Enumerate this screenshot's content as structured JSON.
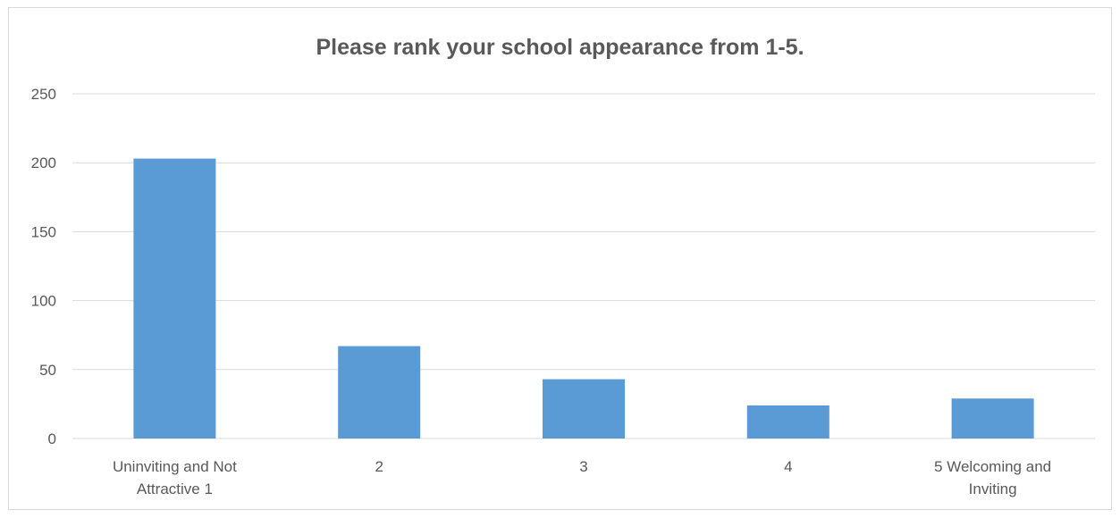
{
  "chart_data": {
    "type": "bar",
    "title": "Please rank your school appearance from 1-5.",
    "xlabel": "",
    "ylabel": "",
    "categories": [
      [
        "Uninviting and Not",
        "Attractive 1"
      ],
      [
        "2"
      ],
      [
        "3"
      ],
      [
        "4"
      ],
      [
        "5 Welcoming and",
        "Inviting"
      ]
    ],
    "values": [
      203,
      67,
      43,
      24,
      29
    ],
    "ylim": [
      0,
      250
    ],
    "yticks": [
      "0",
      "50",
      "100",
      "150",
      "200",
      "250"
    ],
    "grid": true,
    "legend": "none",
    "bar_color": "#5b9bd5",
    "grid_color": "#d9d9d9"
  }
}
